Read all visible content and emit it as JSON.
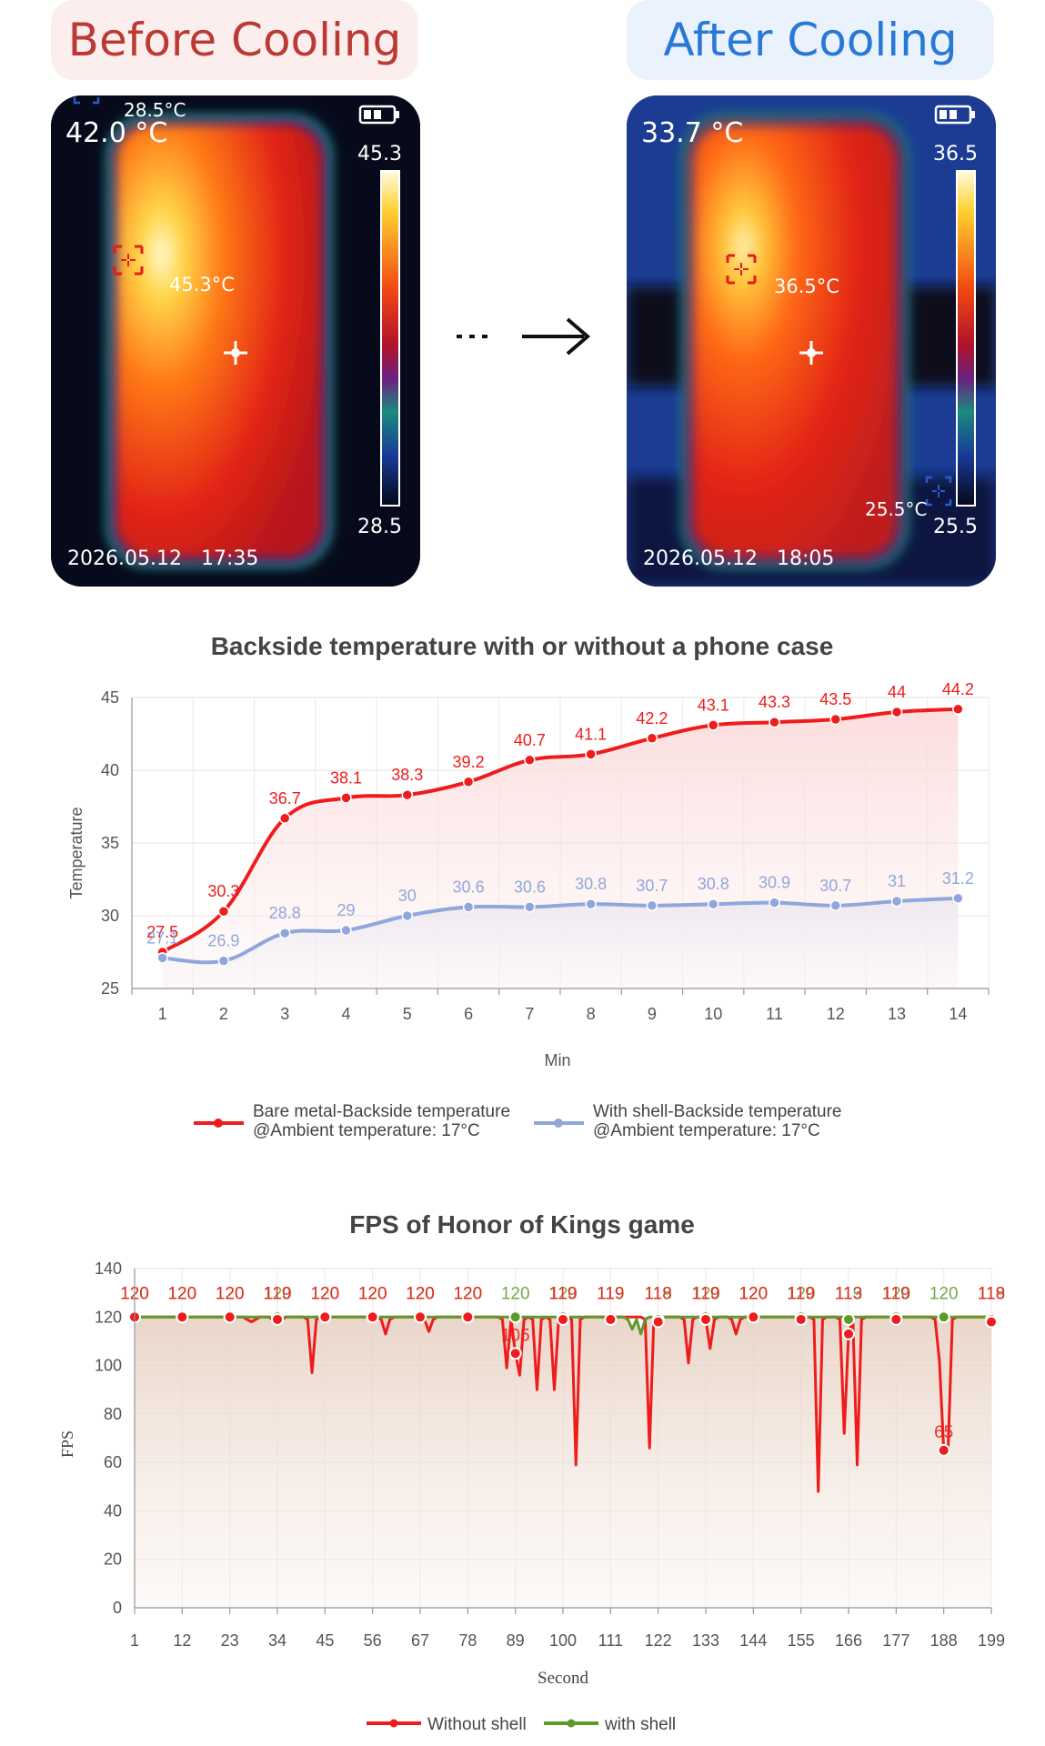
{
  "header": {
    "before_label": "Before Cooling",
    "after_label": "After Cooling"
  },
  "thermal_before": {
    "center_temp": "42.0 °C",
    "cold_spot": "28.5°C",
    "hot_spot": "45.3°C",
    "scale_max": "45.3",
    "scale_min": "28.5",
    "date": "2026.05.12",
    "time": "17:35"
  },
  "thermal_after": {
    "center_temp": "33.7 °C",
    "cold_spot": "25.5°C",
    "hot_spot": "36.5°C",
    "scale_max": "36.5",
    "scale_min": "25.5",
    "date": "2026.05.12",
    "time": "18:05"
  },
  "chart_data": [
    {
      "type": "line",
      "title": "Backside temperature with or without a phone case",
      "xlabel": "Min",
      "ylabel": "Temperature",
      "ylim": [
        25,
        45
      ],
      "yticks": [
        25,
        30,
        35,
        40,
        45
      ],
      "categories": [
        "1",
        "2",
        "3",
        "4",
        "5",
        "6",
        "7",
        "8",
        "9",
        "10",
        "11",
        "12",
        "13",
        "14"
      ],
      "grid": true,
      "legend_position": "bottom",
      "series": [
        {
          "name": "Bare metal-Backside temperature",
          "subtitle": "@Ambient temperature: 17°C",
          "color": "#ee1c1c",
          "values": [
            27.5,
            30.3,
            36.7,
            38.1,
            38.3,
            39.2,
            40.7,
            41.1,
            42.2,
            43.1,
            43.3,
            43.5,
            44,
            44.2
          ]
        },
        {
          "name": "With shell-Backside temperature",
          "subtitle": "@Ambient temperature: 17°C",
          "color": "#8fa7dc",
          "values": [
            27.1,
            26.9,
            28.8,
            29,
            30,
            30.6,
            30.6,
            30.8,
            30.7,
            30.8,
            30.9,
            30.7,
            31,
            31.2
          ]
        }
      ]
    },
    {
      "type": "line",
      "title": "FPS of Honor of Kings game",
      "xlabel": "Second",
      "ylabel": "FPS",
      "ylim": [
        0,
        140
      ],
      "yticks": [
        0,
        20,
        40,
        60,
        80,
        100,
        120,
        140
      ],
      "xticks": [
        1,
        12,
        23,
        34,
        45,
        56,
        67,
        78,
        89,
        100,
        111,
        122,
        133,
        144,
        155,
        166,
        177,
        188,
        199
      ],
      "grid": true,
      "legend_position": "bottom",
      "series": [
        {
          "name": "Without shell",
          "color": "#ee1c1c",
          "marker_values": [
            120,
            120,
            120,
            119,
            120,
            120,
            120,
            120,
            105,
            119,
            119,
            118,
            119,
            120,
            119,
            113,
            119,
            65,
            118
          ],
          "dips": [
            [
              28,
              118
            ],
            [
              34,
              118
            ],
            [
              42,
              97
            ],
            [
              59,
              113
            ],
            [
              69,
              114
            ],
            [
              87,
              99
            ],
            [
              90,
              96
            ],
            [
              94,
              90
            ],
            [
              98,
              90
            ],
            [
              103,
              59
            ],
            [
              120,
              66
            ],
            [
              129,
              101
            ],
            [
              134,
              107
            ],
            [
              140,
              113
            ],
            [
              159,
              48
            ],
            [
              165,
              72
            ],
            [
              168,
              59
            ],
            [
              187,
              102
            ],
            [
              189,
              65
            ]
          ]
        },
        {
          "name": "with shell",
          "color": "#5e9a2a",
          "marker_values": [
            120,
            120,
            120,
            120,
            120,
            120,
            120,
            120,
            120,
            120,
            119,
            119,
            120,
            120,
            120,
            119,
            120,
            120,
            119
          ],
          "dips": [
            [
              116,
              115
            ],
            [
              118,
              113
            ]
          ]
        }
      ]
    }
  ]
}
